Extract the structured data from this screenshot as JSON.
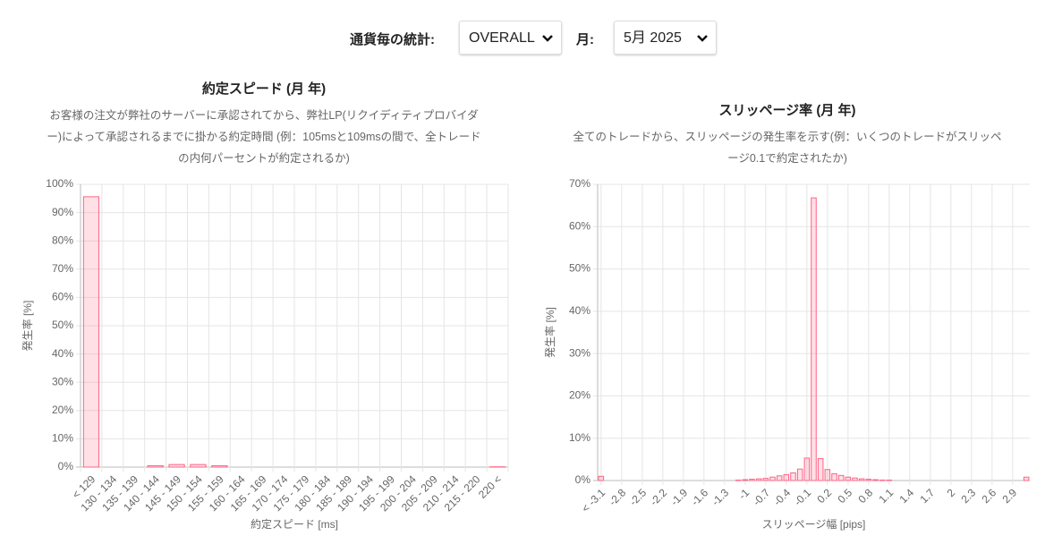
{
  "header": {
    "currency_label": "通貨毎の統計:",
    "currency_value": "OVERALL",
    "month_label": "月:",
    "month_value": "5月 2025"
  },
  "chart_data": [
    {
      "type": "bar",
      "title": "約定スピード (月 年)",
      "subtitle": "お客様の注文が弊社のサーバーに承認されてから、弊社LP(リクイディティプロバイダー)によって承認されるまでに掛かる約定時間 (例：105msと109msの間で、全トレードの内何パーセントが約定されるか)",
      "xlabel": "約定スピード [ms]",
      "ylabel": "発生率 [%]",
      "categories": [
        "< 129",
        "130 - 134",
        "135 - 139",
        "140 - 144",
        "145 - 149",
        "150 - 154",
        "155 - 159",
        "160 - 164",
        "165 - 169",
        "170 - 174",
        "175 - 179",
        "180 - 184",
        "185 - 189",
        "190 - 194",
        "195 - 199",
        "200 - 204",
        "205 - 209",
        "210 - 214",
        "215 - 220",
        "220 <"
      ],
      "values": [
        95.6,
        0,
        0,
        0.5,
        0.9,
        0.9,
        0.5,
        0,
        0,
        0,
        0,
        0,
        0,
        0,
        0,
        0,
        0,
        0,
        0,
        0.1
      ],
      "color": "#ff6384",
      "ylim": [
        0,
        100
      ],
      "grid": true,
      "yticks": [
        {
          "value": 0,
          "label": "0%"
        },
        {
          "value": 10,
          "label": "10%"
        },
        {
          "value": 20,
          "label": "20%"
        },
        {
          "value": 30,
          "label": "30%"
        },
        {
          "value": 40,
          "label": "40%"
        },
        {
          "value": 50,
          "label": "50%"
        },
        {
          "value": 60,
          "label": "60%"
        },
        {
          "value": 70,
          "label": "70%"
        },
        {
          "value": 80,
          "label": "80%"
        },
        {
          "value": 90,
          "label": "90%"
        },
        {
          "value": 100,
          "label": "100%"
        }
      ]
    },
    {
      "type": "bar",
      "title": "スリッページ率 (月 年)",
      "subtitle": "全てのトレードから、スリッページの発生率を示す(例：いくつのトレードがスリッページ0.1で約定されたか)",
      "xlabel": "スリッページ幅 [pips]",
      "ylabel": "発生率 [%]",
      "categories": [
        "< -3.1",
        null,
        null,
        "-2.8",
        null,
        null,
        "-2.5",
        null,
        null,
        "-2.2",
        null,
        null,
        "-1.9",
        null,
        null,
        "-1.6",
        null,
        null,
        "-1.3",
        null,
        null,
        "-1",
        null,
        null,
        "-0.7",
        null,
        null,
        "-0.4",
        null,
        null,
        "-0.1",
        null,
        null,
        "0.2",
        null,
        null,
        "0.5",
        null,
        null,
        "0.8",
        null,
        null,
        "1.1",
        null,
        null,
        "1.4",
        null,
        null,
        "1.7",
        null,
        null,
        "2",
        null,
        null,
        "2.3",
        null,
        null,
        "2.6",
        null,
        null,
        "2.9",
        null,
        null
      ],
      "values": [
        1.0,
        0,
        0,
        0,
        0,
        0,
        0,
        0,
        0,
        0,
        0,
        0,
        0,
        0,
        0,
        0,
        0,
        0,
        0,
        0,
        0.1,
        0.2,
        0.3,
        0.4,
        0.5,
        0.8,
        1.1,
        1.4,
        1.8,
        2.7,
        5.3,
        66.8,
        5.2,
        2.6,
        1.6,
        1.2,
        0.8,
        0.6,
        0.4,
        0.3,
        0.2,
        0.1,
        0.1,
        0,
        0,
        0,
        0,
        0,
        0,
        0,
        0,
        0,
        0,
        0,
        0,
        0,
        0,
        0,
        0,
        0,
        0,
        0,
        0.8
      ],
      "color": "#ff6384",
      "ylim": [
        0,
        70
      ],
      "grid": true,
      "yticks": [
        {
          "value": 0,
          "label": "0%"
        },
        {
          "value": 10,
          "label": "10%"
        },
        {
          "value": 20,
          "label": "20%"
        },
        {
          "value": 30,
          "label": "30%"
        },
        {
          "value": 40,
          "label": "40%"
        },
        {
          "value": 50,
          "label": "50%"
        },
        {
          "value": 60,
          "label": "60%"
        },
        {
          "value": 70,
          "label": "70%"
        }
      ]
    }
  ]
}
